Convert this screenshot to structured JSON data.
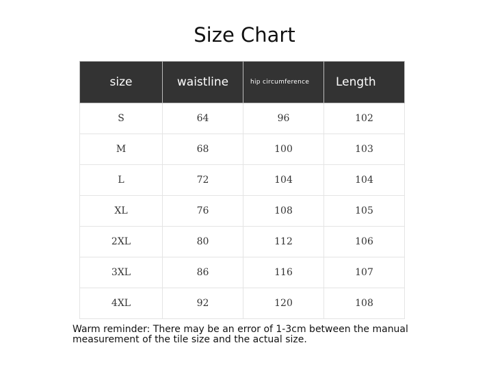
{
  "title": "Size Chart",
  "headers": [
    "size",
    "waistline",
    "hip circumference",
    "Length"
  ],
  "rows": [
    [
      "S",
      "64",
      "96",
      "102"
    ],
    [
      "M",
      "68",
      "100",
      "103"
    ],
    [
      "L",
      "72",
      "104",
      "104"
    ],
    [
      "XL",
      "76",
      "108",
      "105"
    ],
    [
      "2XL",
      "80",
      "112",
      "106"
    ],
    [
      "3XL",
      "86",
      "116",
      "107"
    ],
    [
      "4XL",
      "92",
      "120",
      "108"
    ]
  ],
  "note": "Warm reminder: There may be an error of 1-3cm between the manual measurement of the tile size and the actual size.",
  "colors": {
    "header_bg": "#333333",
    "header_text": "#ffffff"
  }
}
